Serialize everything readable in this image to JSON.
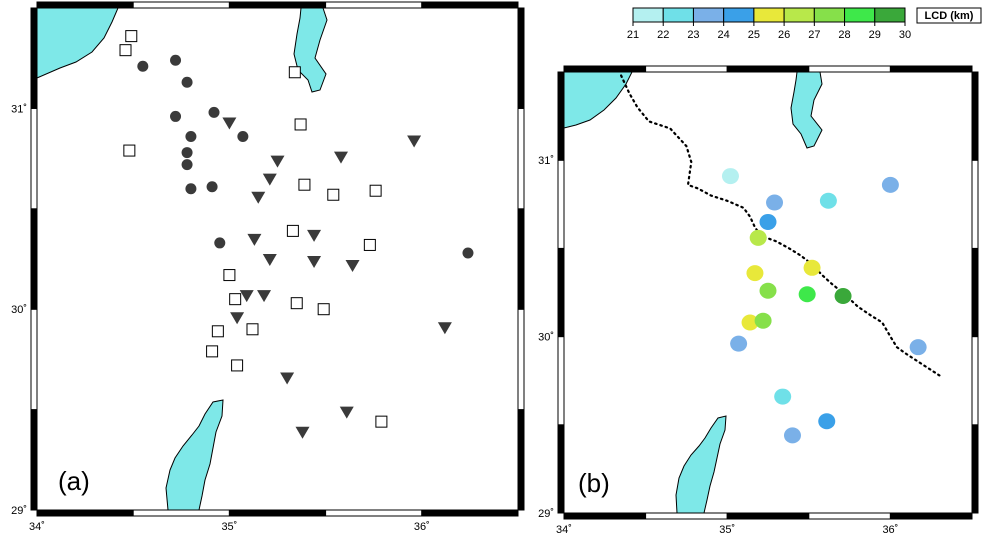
{
  "colors": {
    "sea": "#7ee8e8",
    "frame": "#000000",
    "marker": "#3a3a3a"
  },
  "colorbar": {
    "title": "LCD (km)",
    "ticks": [
      "21",
      "22",
      "23",
      "24",
      "25",
      "26",
      "27",
      "28",
      "29",
      "30"
    ],
    "colors": [
      "#b4f0f0",
      "#6fe0e8",
      "#7ab0e8",
      "#3aa0e8",
      "#e8e83a",
      "#b8e84a",
      "#86e04a",
      "#3ee84a",
      "#3aa83a"
    ]
  },
  "panel_a": {
    "label": "(a)",
    "x_ticks": [
      {
        "lon": 34,
        "label": "34˚"
      },
      {
        "lon": 35,
        "label": "35˚"
      },
      {
        "lon": 36,
        "label": "36˚"
      }
    ],
    "y_ticks": [
      {
        "lat": 29,
        "label": "29˚"
      },
      {
        "lat": 30,
        "label": "30˚"
      },
      {
        "lat": 31,
        "label": "31˚"
      }
    ],
    "circles": [
      [
        34.55,
        31.21
      ],
      [
        34.72,
        31.24
      ],
      [
        34.78,
        31.13
      ],
      [
        34.72,
        30.96
      ],
      [
        34.92,
        30.98
      ],
      [
        34.8,
        30.86
      ],
      [
        35.07,
        30.86
      ],
      [
        34.78,
        30.78
      ],
      [
        34.78,
        30.72
      ],
      [
        34.8,
        30.6
      ],
      [
        34.91,
        30.61
      ],
      [
        34.95,
        30.33
      ],
      [
        36.24,
        30.28
      ]
    ],
    "squares": [
      [
        34.49,
        31.36
      ],
      [
        34.46,
        31.29
      ],
      [
        35.34,
        31.18
      ],
      [
        34.48,
        30.79
      ],
      [
        35.37,
        30.92
      ],
      [
        35.39,
        30.62
      ],
      [
        35.54,
        30.57
      ],
      [
        35.76,
        30.59
      ],
      [
        35.33,
        30.39
      ],
      [
        35.73,
        30.32
      ],
      [
        35.0,
        30.17
      ],
      [
        35.03,
        30.05
      ],
      [
        35.35,
        30.03
      ],
      [
        35.49,
        30.0
      ],
      [
        34.94,
        29.89
      ],
      [
        35.12,
        29.9
      ],
      [
        34.91,
        29.79
      ],
      [
        35.04,
        29.72
      ],
      [
        35.79,
        29.44
      ]
    ],
    "triangles": [
      [
        35.0,
        30.93
      ],
      [
        35.25,
        30.74
      ],
      [
        35.58,
        30.76
      ],
      [
        35.96,
        30.84
      ],
      [
        35.21,
        30.65
      ],
      [
        35.15,
        30.56
      ],
      [
        35.13,
        30.35
      ],
      [
        35.44,
        30.37
      ],
      [
        35.21,
        30.25
      ],
      [
        35.44,
        30.24
      ],
      [
        35.64,
        30.22
      ],
      [
        35.09,
        30.07
      ],
      [
        35.18,
        30.07
      ],
      [
        35.04,
        29.96
      ],
      [
        35.3,
        29.66
      ],
      [
        35.61,
        29.49
      ],
      [
        35.38,
        29.39
      ],
      [
        36.12,
        29.91
      ]
    ]
  },
  "panel_b": {
    "label": "(b)",
    "x_ticks": [
      {
        "lon": 34,
        "label": "34˚"
      },
      {
        "lon": 35,
        "label": "35˚"
      },
      {
        "lon": 36,
        "label": "36˚"
      }
    ],
    "y_ticks": [
      {
        "lat": 29,
        "label": "29˚"
      },
      {
        "lat": 30,
        "label": "30˚"
      },
      {
        "lat": 31,
        "label": "31˚"
      }
    ],
    "points": [
      {
        "lon": 35.02,
        "lat": 30.91,
        "lcd": 21.5
      },
      {
        "lon": 35.29,
        "lat": 30.76,
        "lcd": 23.5
      },
      {
        "lon": 35.62,
        "lat": 30.77,
        "lcd": 22.5
      },
      {
        "lon": 36.0,
        "lat": 30.86,
        "lcd": 23.5
      },
      {
        "lon": 35.25,
        "lat": 30.65,
        "lcd": 24.5
      },
      {
        "lon": 35.19,
        "lat": 30.56,
        "lcd": 26.5
      },
      {
        "lon": 35.52,
        "lat": 30.39,
        "lcd": 25.5
      },
      {
        "lon": 35.17,
        "lat": 30.36,
        "lcd": 25.5
      },
      {
        "lon": 35.25,
        "lat": 30.26,
        "lcd": 27.5
      },
      {
        "lon": 35.49,
        "lat": 30.24,
        "lcd": 28.5
      },
      {
        "lon": 35.71,
        "lat": 30.23,
        "lcd": 29.5
      },
      {
        "lon": 35.14,
        "lat": 30.08,
        "lcd": 25.5
      },
      {
        "lon": 35.22,
        "lat": 30.09,
        "lcd": 27.5
      },
      {
        "lon": 35.07,
        "lat": 29.96,
        "lcd": 23.5
      },
      {
        "lon": 36.17,
        "lat": 29.94,
        "lcd": 23.5
      },
      {
        "lon": 35.34,
        "lat": 29.66,
        "lcd": 22.5
      },
      {
        "lon": 35.61,
        "lat": 29.52,
        "lcd": 24.5
      },
      {
        "lon": 35.4,
        "lat": 29.44,
        "lcd": 23.5
      }
    ],
    "fault": [
      [
        34.35,
        31.48
      ],
      [
        34.4,
        31.38
      ],
      [
        34.45,
        31.3
      ],
      [
        34.52,
        31.22
      ],
      [
        34.65,
        31.18
      ],
      [
        34.75,
        31.08
      ],
      [
        34.78,
        30.99
      ],
      [
        34.76,
        30.86
      ],
      [
        34.82,
        30.84
      ],
      [
        34.9,
        30.8
      ],
      [
        35.0,
        30.77
      ],
      [
        35.1,
        30.73
      ],
      [
        35.14,
        30.68
      ],
      [
        35.17,
        30.62
      ],
      [
        35.2,
        30.58
      ],
      [
        35.24,
        30.56
      ],
      [
        35.3,
        30.54
      ],
      [
        35.38,
        30.5
      ],
      [
        35.45,
        30.46
      ],
      [
        35.52,
        30.41
      ],
      [
        35.58,
        30.35
      ],
      [
        35.64,
        30.3
      ],
      [
        35.72,
        30.24
      ],
      [
        35.8,
        30.17
      ],
      [
        35.88,
        30.12
      ],
      [
        35.95,
        30.08
      ],
      [
        36.0,
        30.0
      ],
      [
        36.04,
        29.94
      ],
      [
        36.1,
        29.9
      ],
      [
        36.2,
        29.84
      ],
      [
        36.3,
        29.78
      ]
    ]
  }
}
